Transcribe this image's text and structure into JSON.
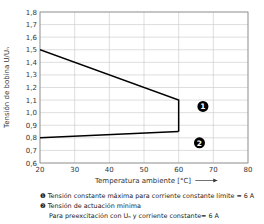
{
  "chart_data": {
    "type": "line",
    "x_label": "Temperatura ambiente [°C]",
    "y_label": "Tensión de bobina U/Uₙ",
    "xlim": [
      20,
      80
    ],
    "xticks": [
      20,
      30,
      40,
      50,
      60,
      70,
      80
    ],
    "ylim": [
      0.6,
      1.8
    ],
    "yticks": [
      {
        "value": 0.6,
        "label": "0,6"
      },
      {
        "value": 0.7,
        "label": "0,7"
      },
      {
        "value": 0.8,
        "label": "0,8"
      },
      {
        "value": 0.9,
        "label": "0,9"
      },
      {
        "value": 1.0,
        "label": "1,0"
      },
      {
        "value": 1.1,
        "label": "1,1"
      },
      {
        "value": 1.2,
        "label": "1,2"
      },
      {
        "value": 1.3,
        "label": "1,3"
      },
      {
        "value": 1.4,
        "label": "1,4"
      },
      {
        "value": 1.5,
        "label": "1,5"
      },
      {
        "value": 1.6,
        "label": "1,6"
      },
      {
        "value": 1.7,
        "label": "1,7"
      },
      {
        "value": 1.8,
        "label": "1,8"
      }
    ],
    "grid": true,
    "series": [
      {
        "color": "#000000",
        "x": [
          20,
          60,
          60
        ],
        "values": [
          1.5,
          1.1,
          0.85
        ]
      },
      {
        "color": "#000000",
        "x": [
          20,
          60
        ],
        "values": [
          0.8,
          0.85
        ]
      }
    ],
    "annotations": [
      {
        "text": "1",
        "x": 67,
        "y": 1.05
      },
      {
        "text": "2",
        "x": 66,
        "y": 0.76
      }
    ],
    "notes": [
      "❶ Tensión constante máxima para corriente constante límite = 6 A",
      "❷ Tensión de actuación mínima",
      "Para preexcitación con Uₙ y corriente constante= 6 A"
    ]
  }
}
